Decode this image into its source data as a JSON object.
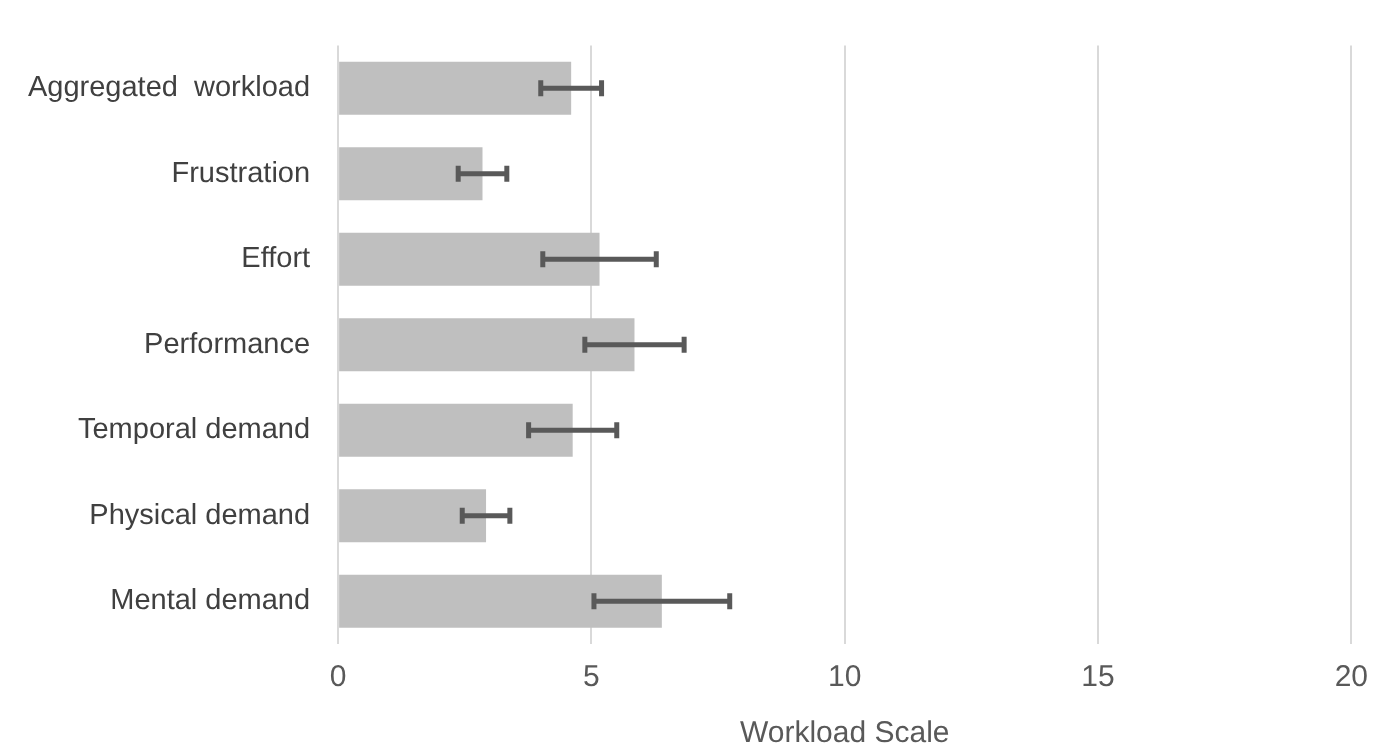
{
  "chart_data": {
    "type": "bar",
    "orientation": "horizontal",
    "xlabel": "Workload Scale",
    "categories": [
      "Aggregated  workload",
      "Frustration",
      "Effort",
      "Performance",
      "Temporal demand",
      "Physical demand",
      "Mental demand"
    ],
    "values": [
      4.6,
      2.85,
      5.16,
      5.85,
      4.63,
      2.92,
      6.39
    ],
    "errors": [
      0.6,
      0.48,
      1.12,
      0.98,
      0.87,
      0.47,
      1.34
    ],
    "color": "#bfbfbf",
    "xlim": [
      0,
      20
    ],
    "xticks": [
      0,
      5,
      10,
      15,
      20
    ],
    "grid": "x",
    "legend": false
  }
}
